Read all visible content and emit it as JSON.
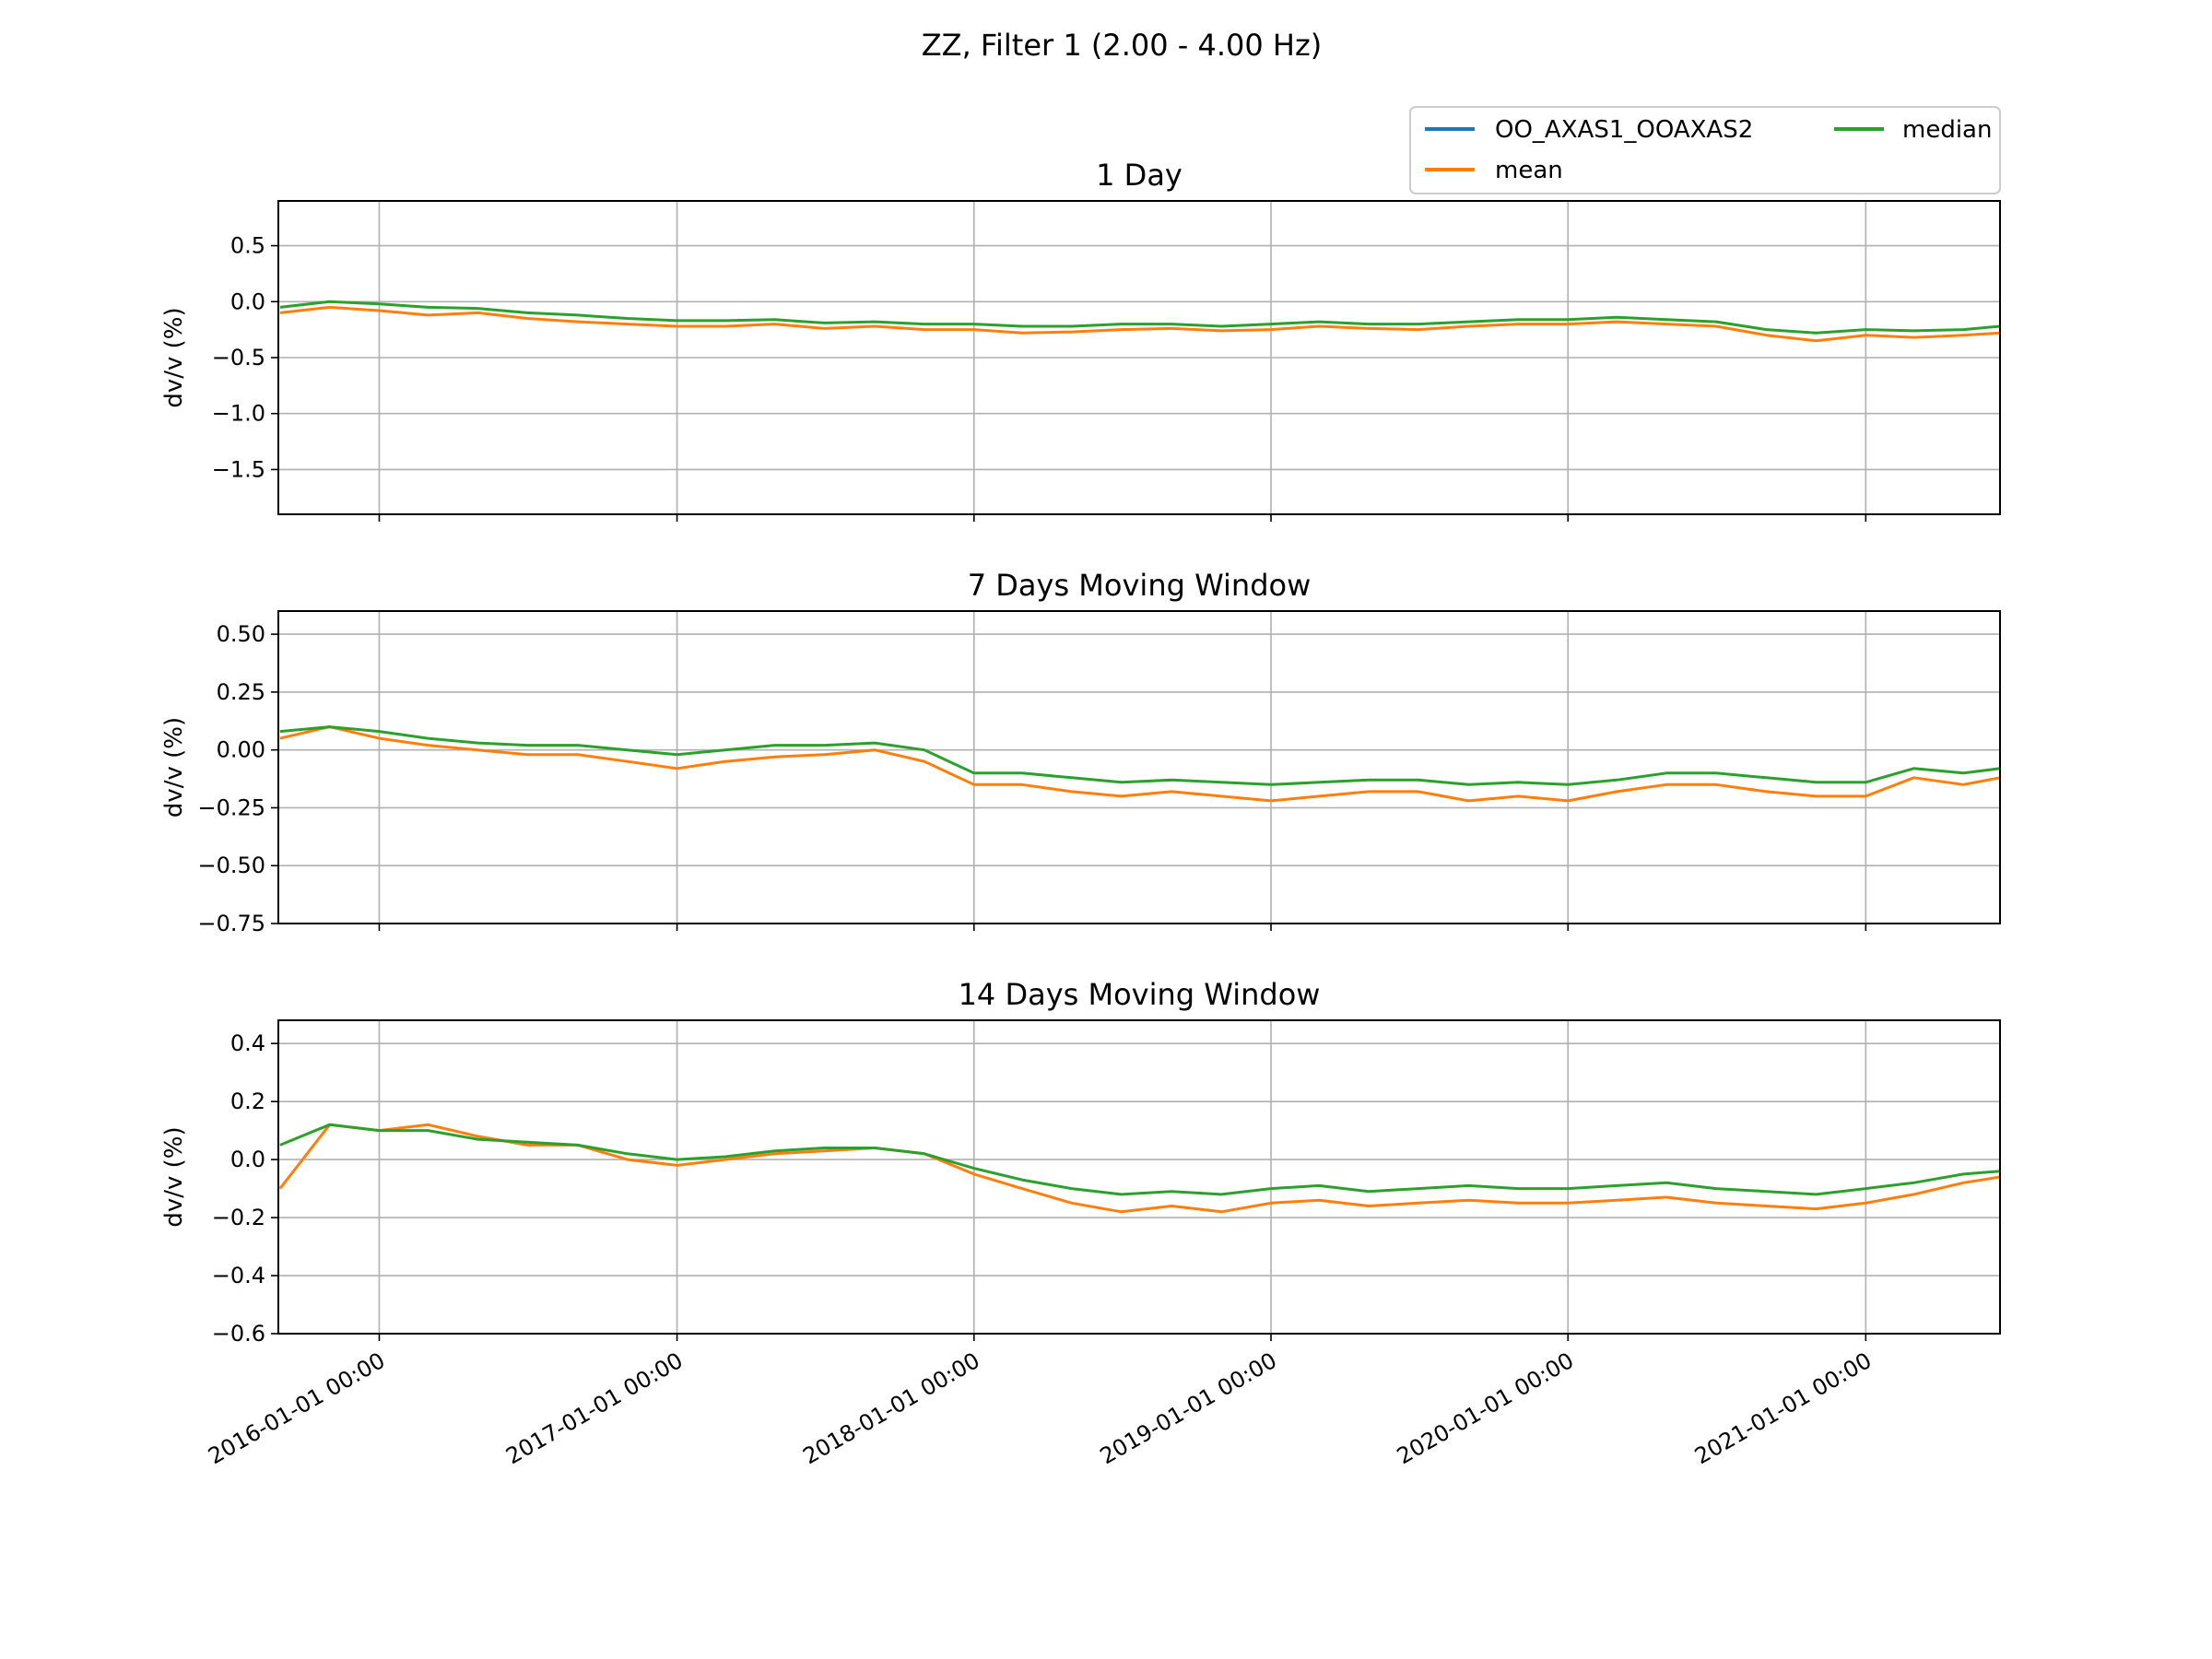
{
  "chart_data": {
    "type": "line",
    "title": "ZZ, Filter 1 (2.00 - 4.00 Hz)",
    "x_start": "2015-08-30",
    "x_end": "2021-06-15",
    "x_ticks": [
      "2016-01-01 00:00",
      "2017-01-01 00:00",
      "2018-01-01 00:00",
      "2019-01-01 00:00",
      "2020-01-01 00:00",
      "2021-01-01 00:00"
    ],
    "grid": true,
    "legend": {
      "placement": "top-right",
      "entries": [
        {
          "name": "OO_AXAS1_OOAXAS2",
          "color": "#1f77b4"
        },
        {
          "name": "mean",
          "color": "#ff7f0e"
        },
        {
          "name": "median",
          "color": "#2ca02c"
        }
      ]
    },
    "panels": [
      {
        "title": "1 Day",
        "ylabel": "dv/v (%)",
        "ylim": [
          -1.9,
          0.9
        ],
        "yticks": [
          0.5,
          0.0,
          -0.5,
          -1.0,
          -1.5
        ],
        "ytick_labels": [
          "0.5",
          "0.0",
          "−0.5",
          "−1.0",
          "−1.5"
        ],
        "series": {
          "mean": {
            "x": [
              "2015-09-01",
              "2015-11-01",
              "2016-01-01",
              "2016-03-01",
              "2016-05-01",
              "2016-07-01",
              "2016-09-01",
              "2016-11-01",
              "2017-01-01",
              "2017-03-01",
              "2017-05-01",
              "2017-07-01",
              "2017-09-01",
              "2017-11-01",
              "2018-01-01",
              "2018-03-01",
              "2018-05-01",
              "2018-07-01",
              "2018-09-01",
              "2018-11-01",
              "2019-01-01",
              "2019-03-01",
              "2019-05-01",
              "2019-07-01",
              "2019-09-01",
              "2019-11-01",
              "2020-01-01",
              "2020-03-01",
              "2020-05-01",
              "2020-07-01",
              "2020-09-01",
              "2020-11-01",
              "2021-01-01",
              "2021-03-01",
              "2021-05-01",
              "2021-06-15"
            ],
            "y": [
              -0.1,
              -0.05,
              -0.08,
              -0.12,
              -0.1,
              -0.15,
              -0.18,
              -0.2,
              -0.22,
              -0.22,
              -0.2,
              -0.24,
              -0.22,
              -0.25,
              -0.25,
              -0.28,
              -0.27,
              -0.25,
              -0.24,
              -0.26,
              -0.25,
              -0.22,
              -0.24,
              -0.25,
              -0.22,
              -0.2,
              -0.2,
              -0.18,
              -0.2,
              -0.22,
              -0.3,
              -0.35,
              -0.3,
              -0.32,
              -0.3,
              -0.28
            ]
          },
          "median": {
            "x": [
              "2015-09-01",
              "2015-11-01",
              "2016-01-01",
              "2016-03-01",
              "2016-05-01",
              "2016-07-01",
              "2016-09-01",
              "2016-11-01",
              "2017-01-01",
              "2017-03-01",
              "2017-05-01",
              "2017-07-01",
              "2017-09-01",
              "2017-11-01",
              "2018-01-01",
              "2018-03-01",
              "2018-05-01",
              "2018-07-01",
              "2018-09-01",
              "2018-11-01",
              "2019-01-01",
              "2019-03-01",
              "2019-05-01",
              "2019-07-01",
              "2019-09-01",
              "2019-11-01",
              "2020-01-01",
              "2020-03-01",
              "2020-05-01",
              "2020-07-01",
              "2020-09-01",
              "2020-11-01",
              "2021-01-01",
              "2021-03-01",
              "2021-05-01",
              "2021-06-15"
            ],
            "y": [
              -0.05,
              0.0,
              -0.02,
              -0.05,
              -0.06,
              -0.1,
              -0.12,
              -0.15,
              -0.17,
              -0.17,
              -0.16,
              -0.19,
              -0.18,
              -0.2,
              -0.2,
              -0.22,
              -0.22,
              -0.2,
              -0.2,
              -0.22,
              -0.2,
              -0.18,
              -0.2,
              -0.2,
              -0.18,
              -0.16,
              -0.16,
              -0.14,
              -0.16,
              -0.18,
              -0.25,
              -0.28,
              -0.25,
              -0.26,
              -0.25,
              -0.22
            ]
          }
        }
      },
      {
        "title": "7 Days Moving Window",
        "ylabel": "dv/v (%)",
        "ylim": [
          -0.75,
          0.6
        ],
        "yticks": [
          0.5,
          0.25,
          0.0,
          -0.25,
          -0.5,
          -0.75
        ],
        "ytick_labels": [
          "0.50",
          "0.25",
          "0.00",
          "−0.25",
          "−0.50",
          "−0.75"
        ],
        "series": {
          "mean": {
            "x": [
              "2015-09-01",
              "2015-11-01",
              "2016-01-01",
              "2016-03-01",
              "2016-05-01",
              "2016-07-01",
              "2016-09-01",
              "2016-11-01",
              "2017-01-01",
              "2017-03-01",
              "2017-05-01",
              "2017-07-01",
              "2017-09-01",
              "2017-11-01",
              "2018-01-01",
              "2018-03-01",
              "2018-05-01",
              "2018-07-01",
              "2018-09-01",
              "2018-11-01",
              "2019-01-01",
              "2019-03-01",
              "2019-05-01",
              "2019-07-01",
              "2019-09-01",
              "2019-11-01",
              "2020-01-01",
              "2020-03-01",
              "2020-05-01",
              "2020-07-01",
              "2020-09-01",
              "2020-11-01",
              "2021-01-01",
              "2021-03-01",
              "2021-05-01",
              "2021-06-15"
            ],
            "y": [
              0.05,
              0.1,
              0.05,
              0.02,
              0.0,
              -0.02,
              -0.02,
              -0.05,
              -0.08,
              -0.05,
              -0.03,
              -0.02,
              0.0,
              -0.05,
              -0.15,
              -0.15,
              -0.18,
              -0.2,
              -0.18,
              -0.2,
              -0.22,
              -0.2,
              -0.18,
              -0.18,
              -0.22,
              -0.2,
              -0.22,
              -0.18,
              -0.15,
              -0.15,
              -0.18,
              -0.2,
              -0.2,
              -0.12,
              -0.15,
              -0.12
            ]
          },
          "median": {
            "x": [
              "2015-09-01",
              "2015-11-01",
              "2016-01-01",
              "2016-03-01",
              "2016-05-01",
              "2016-07-01",
              "2016-09-01",
              "2016-11-01",
              "2017-01-01",
              "2017-03-01",
              "2017-05-01",
              "2017-07-01",
              "2017-09-01",
              "2017-11-01",
              "2018-01-01",
              "2018-03-01",
              "2018-05-01",
              "2018-07-01",
              "2018-09-01",
              "2018-11-01",
              "2019-01-01",
              "2019-03-01",
              "2019-05-01",
              "2019-07-01",
              "2019-09-01",
              "2019-11-01",
              "2020-01-01",
              "2020-03-01",
              "2020-05-01",
              "2020-07-01",
              "2020-09-01",
              "2020-11-01",
              "2021-01-01",
              "2021-03-01",
              "2021-05-01",
              "2021-06-15"
            ],
            "y": [
              0.08,
              0.1,
              0.08,
              0.05,
              0.03,
              0.02,
              0.02,
              0.0,
              -0.02,
              0.0,
              0.02,
              0.02,
              0.03,
              0.0,
              -0.1,
              -0.1,
              -0.12,
              -0.14,
              -0.13,
              -0.14,
              -0.15,
              -0.14,
              -0.13,
              -0.13,
              -0.15,
              -0.14,
              -0.15,
              -0.13,
              -0.1,
              -0.1,
              -0.12,
              -0.14,
              -0.14,
              -0.08,
              -0.1,
              -0.08
            ]
          }
        }
      },
      {
        "title": "14 Days Moving Window",
        "ylabel": "dv/v (%)",
        "ylim": [
          -0.6,
          0.48
        ],
        "yticks": [
          0.4,
          0.2,
          0.0,
          -0.2,
          -0.4,
          -0.6
        ],
        "ytick_labels": [
          "0.4",
          "0.2",
          "0.0",
          "−0.2",
          "−0.4",
          "−0.6"
        ],
        "series": {
          "mean": {
            "x": [
              "2015-09-01",
              "2015-11-01",
              "2016-01-01",
              "2016-03-01",
              "2016-05-01",
              "2016-07-01",
              "2016-09-01",
              "2016-11-01",
              "2017-01-01",
              "2017-03-01",
              "2017-05-01",
              "2017-07-01",
              "2017-09-01",
              "2017-11-01",
              "2018-01-01",
              "2018-03-01",
              "2018-05-01",
              "2018-07-01",
              "2018-09-01",
              "2018-11-01",
              "2019-01-01",
              "2019-03-01",
              "2019-05-01",
              "2019-07-01",
              "2019-09-01",
              "2019-11-01",
              "2020-01-01",
              "2020-03-01",
              "2020-05-01",
              "2020-07-01",
              "2020-09-01",
              "2020-11-01",
              "2021-01-01",
              "2021-03-01",
              "2021-05-01",
              "2021-06-15"
            ],
            "y": [
              -0.1,
              0.12,
              0.1,
              0.12,
              0.08,
              0.05,
              0.05,
              0.0,
              -0.02,
              0.0,
              0.02,
              0.03,
              0.04,
              0.02,
              -0.05,
              -0.1,
              -0.15,
              -0.18,
              -0.16,
              -0.18,
              -0.15,
              -0.14,
              -0.16,
              -0.15,
              -0.14,
              -0.15,
              -0.15,
              -0.14,
              -0.13,
              -0.15,
              -0.16,
              -0.17,
              -0.15,
              -0.12,
              -0.08,
              -0.06
            ]
          },
          "median": {
            "x": [
              "2015-09-01",
              "2015-11-01",
              "2016-01-01",
              "2016-03-01",
              "2016-05-01",
              "2016-07-01",
              "2016-09-01",
              "2016-11-01",
              "2017-01-01",
              "2017-03-01",
              "2017-05-01",
              "2017-07-01",
              "2017-09-01",
              "2017-11-01",
              "2018-01-01",
              "2018-03-01",
              "2018-05-01",
              "2018-07-01",
              "2018-09-01",
              "2018-11-01",
              "2019-01-01",
              "2019-03-01",
              "2019-05-01",
              "2019-07-01",
              "2019-09-01",
              "2019-11-01",
              "2020-01-01",
              "2020-03-01",
              "2020-05-01",
              "2020-07-01",
              "2020-09-01",
              "2020-11-01",
              "2021-01-01",
              "2021-03-01",
              "2021-05-01",
              "2021-06-15"
            ],
            "y": [
              0.05,
              0.12,
              0.1,
              0.1,
              0.07,
              0.06,
              0.05,
              0.02,
              0.0,
              0.01,
              0.03,
              0.04,
              0.04,
              0.02,
              -0.03,
              -0.07,
              -0.1,
              -0.12,
              -0.11,
              -0.12,
              -0.1,
              -0.09,
              -0.11,
              -0.1,
              -0.09,
              -0.1,
              -0.1,
              -0.09,
              -0.08,
              -0.1,
              -0.11,
              -0.12,
              -0.1,
              -0.08,
              -0.05,
              -0.04
            ]
          }
        }
      }
    ]
  }
}
